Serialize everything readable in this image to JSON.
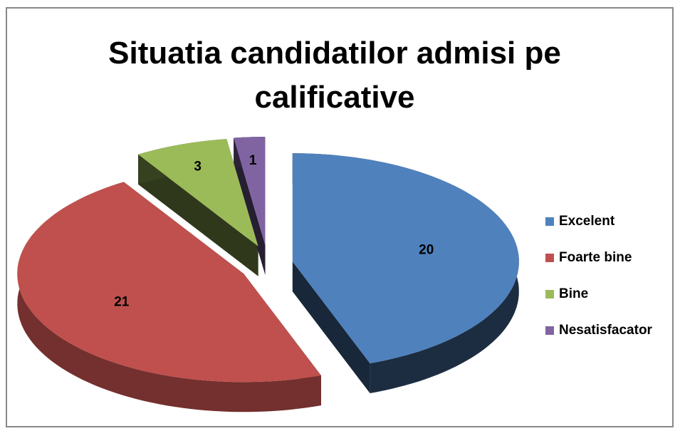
{
  "chart_data": {
    "type": "pie3d",
    "title": "Situatia candidatilor admisi pe calificative",
    "categories": [
      "Excelent",
      "Foarte bine",
      "Bine",
      "Nesatisfacator"
    ],
    "values": [
      20,
      21,
      3,
      1
    ],
    "colors": [
      "#4f81bd",
      "#c0504d",
      "#9bbb59",
      "#8064a2"
    ],
    "legend": "right"
  }
}
